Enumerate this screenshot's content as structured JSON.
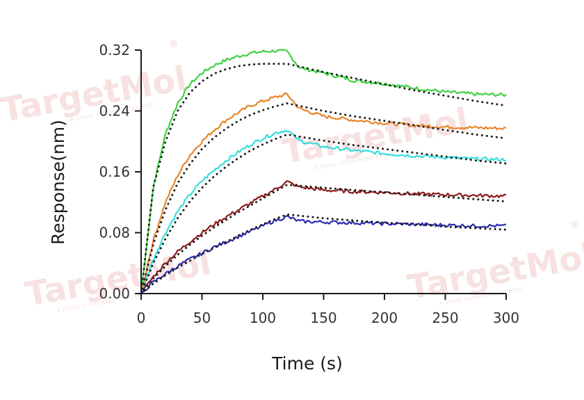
{
  "watermark": {
    "brand": "TargetMol",
    "tagline": "A DRUG SCREENING EXPERT",
    "symbol": "®"
  },
  "chart_data": {
    "type": "line",
    "title": "",
    "xlabel": "Time (s)",
    "ylabel": "Response(nm)",
    "xlim": [
      0,
      300
    ],
    "ylim": [
      0,
      0.32
    ],
    "xticks": [
      "0",
      "50",
      "100",
      "150",
      "200",
      "250",
      "300"
    ],
    "yticks": [
      "0.00",
      "0.08",
      "0.16",
      "0.24",
      "0.32"
    ],
    "grid": false,
    "legend": "none",
    "association_end": 120,
    "series": [
      {
        "color": "#3fd13f",
        "fit_color": "#1a1a1a",
        "x": [
          0,
          10,
          20,
          30,
          40,
          50,
          60,
          70,
          80,
          90,
          100,
          110,
          120,
          130,
          150,
          175,
          200,
          225,
          250,
          275,
          300
        ],
        "y": [
          0.0,
          0.14,
          0.21,
          0.25,
          0.275,
          0.29,
          0.3,
          0.307,
          0.312,
          0.316,
          0.318,
          0.319,
          0.318,
          0.297,
          0.29,
          0.28,
          0.276,
          0.27,
          0.265,
          0.262,
          0.261
        ],
        "fit_x": [
          0,
          10,
          20,
          30,
          40,
          50,
          60,
          70,
          80,
          90,
          100,
          110,
          120,
          150,
          175,
          200,
          225,
          250,
          275,
          300
        ],
        "fit_y": [
          0.0,
          0.14,
          0.2,
          0.24,
          0.264,
          0.279,
          0.289,
          0.295,
          0.299,
          0.301,
          0.302,
          0.302,
          0.302,
          0.291,
          0.283,
          0.275,
          0.267,
          0.26,
          0.253,
          0.247
        ]
      },
      {
        "color": "#e8842a",
        "fit_color": "#1a1a1a",
        "x": [
          0,
          10,
          20,
          30,
          40,
          50,
          60,
          70,
          80,
          90,
          100,
          110,
          120,
          130,
          150,
          175,
          200,
          225,
          250,
          275,
          300
        ],
        "y": [
          0.0,
          0.07,
          0.12,
          0.155,
          0.182,
          0.2,
          0.215,
          0.228,
          0.238,
          0.247,
          0.253,
          0.258,
          0.262,
          0.243,
          0.233,
          0.228,
          0.224,
          0.221,
          0.219,
          0.218,
          0.217
        ],
        "fit_x": [
          0,
          10,
          20,
          30,
          40,
          50,
          60,
          70,
          80,
          90,
          100,
          110,
          120,
          150,
          175,
          200,
          225,
          250,
          275,
          300
        ],
        "fit_y": [
          0.0,
          0.065,
          0.11,
          0.145,
          0.17,
          0.19,
          0.205,
          0.217,
          0.227,
          0.235,
          0.241,
          0.246,
          0.25,
          0.24,
          0.233,
          0.227,
          0.221,
          0.215,
          0.209,
          0.204
        ]
      },
      {
        "color": "#35dede",
        "fit_color": "#1a1a1a",
        "x": [
          0,
          10,
          20,
          30,
          40,
          50,
          60,
          70,
          80,
          90,
          100,
          110,
          120,
          130,
          150,
          175,
          200,
          225,
          250,
          275,
          300
        ],
        "y": [
          0.0,
          0.045,
          0.08,
          0.108,
          0.13,
          0.148,
          0.162,
          0.175,
          0.186,
          0.196,
          0.204,
          0.211,
          0.215,
          0.201,
          0.193,
          0.188,
          0.184,
          0.181,
          0.179,
          0.177,
          0.176
        ],
        "fit_x": [
          0,
          10,
          20,
          30,
          40,
          50,
          60,
          70,
          80,
          90,
          100,
          110,
          120,
          150,
          175,
          200,
          225,
          250,
          275,
          300
        ],
        "fit_y": [
          0.0,
          0.04,
          0.072,
          0.099,
          0.121,
          0.139,
          0.154,
          0.167,
          0.178,
          0.188,
          0.196,
          0.203,
          0.209,
          0.201,
          0.195,
          0.19,
          0.185,
          0.18,
          0.175,
          0.171
        ]
      },
      {
        "color": "#8b1a1a",
        "fit_color": "#1a1a1a",
        "x": [
          0,
          10,
          20,
          30,
          40,
          50,
          60,
          70,
          80,
          90,
          100,
          110,
          120,
          130,
          150,
          175,
          200,
          225,
          250,
          275,
          300
        ],
        "y": [
          0.0,
          0.022,
          0.04,
          0.055,
          0.068,
          0.08,
          0.091,
          0.101,
          0.11,
          0.119,
          0.128,
          0.137,
          0.147,
          0.14,
          0.136,
          0.134,
          0.133,
          0.131,
          0.13,
          0.129,
          0.128
        ],
        "fit_x": [
          0,
          10,
          20,
          30,
          40,
          50,
          60,
          70,
          80,
          90,
          100,
          110,
          120,
          150,
          175,
          200,
          225,
          250,
          275,
          300
        ],
        "fit_y": [
          0.0,
          0.02,
          0.036,
          0.051,
          0.064,
          0.076,
          0.087,
          0.097,
          0.107,
          0.116,
          0.125,
          0.134,
          0.143,
          0.139,
          0.136,
          0.133,
          0.13,
          0.127,
          0.124,
          0.121
        ]
      },
      {
        "color": "#2a2ab0",
        "fit_color": "#1a1a1a",
        "x": [
          0,
          10,
          20,
          30,
          40,
          50,
          60,
          70,
          80,
          90,
          100,
          110,
          120,
          130,
          150,
          175,
          200,
          225,
          250,
          275,
          300
        ],
        "y": [
          0.0,
          0.015,
          0.026,
          0.036,
          0.045,
          0.053,
          0.061,
          0.068,
          0.075,
          0.082,
          0.089,
          0.096,
          0.101,
          0.095,
          0.094,
          0.093,
          0.092,
          0.091,
          0.09,
          0.089,
          0.089
        ],
        "fit_x": [
          0,
          10,
          20,
          30,
          40,
          50,
          60,
          70,
          80,
          90,
          100,
          110,
          120,
          150,
          175,
          200,
          225,
          250,
          275,
          300
        ],
        "fit_y": [
          0.0,
          0.013,
          0.024,
          0.034,
          0.043,
          0.052,
          0.06,
          0.068,
          0.076,
          0.084,
          0.091,
          0.098,
          0.104,
          0.099,
          0.096,
          0.093,
          0.091,
          0.088,
          0.086,
          0.084
        ]
      }
    ]
  }
}
